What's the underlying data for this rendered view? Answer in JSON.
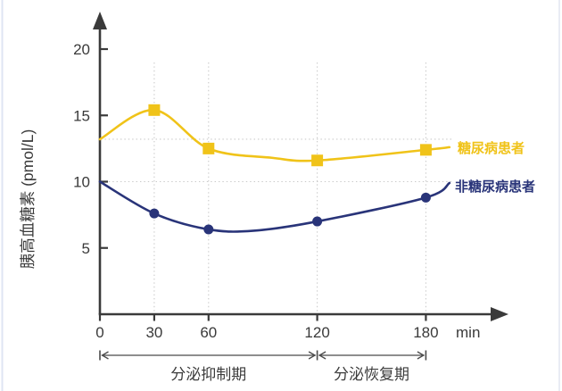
{
  "chart_data": {
    "type": "line",
    "title": "",
    "ylabel": "胰高血糖素 (pmol/L)",
    "x_unit": "min",
    "x_ticks": [
      0,
      30,
      60,
      120,
      180
    ],
    "y_ticks": [
      5,
      10,
      15,
      20
    ],
    "xlim": [
      0,
      205
    ],
    "ylim": [
      0,
      22
    ],
    "grid": "dotted",
    "grid_x": [
      30,
      60,
      120,
      180
    ],
    "ref_lines_y": [
      13.2,
      10
    ],
    "categories_min": [
      0,
      30,
      60,
      120,
      180
    ],
    "series": [
      {
        "name": "糖尿病患者",
        "color": "#F0C319",
        "marker": "square",
        "values": [
          13.2,
          15.4,
          12.5,
          11.6,
          12.4
        ],
        "shape_points": [
          [
            0,
            13.2
          ],
          [
            30,
            15.4
          ],
          [
            60,
            12.5
          ],
          [
            95,
            11.8
          ],
          [
            120,
            11.6
          ],
          [
            180,
            12.4
          ],
          [
            193,
            12.6
          ]
        ],
        "markers_at": [
          30,
          60,
          120,
          180
        ]
      },
      {
        "name": "非糖尿病患者",
        "color": "#293479",
        "marker": "circle",
        "values": [
          10.0,
          7.6,
          6.4,
          7.0,
          8.8
        ],
        "shape_points": [
          [
            0,
            10
          ],
          [
            30,
            7.6
          ],
          [
            60,
            6.4
          ],
          [
            85,
            6.3
          ],
          [
            120,
            7.0
          ],
          [
            180,
            8.8
          ],
          [
            193,
            9.9
          ]
        ],
        "markers_at": [
          30,
          60,
          120,
          180
        ]
      }
    ],
    "phases": [
      {
        "label": "分泌抑制期",
        "from": 0,
        "to": 120
      },
      {
        "label": "分泌恢复期",
        "from": 120,
        "to": 180
      }
    ],
    "legend_position": "right-of-line-end"
  },
  "colors": {
    "axis": "#3A3A3A",
    "grid": "#C9C9C9",
    "text": "#3A3A3A",
    "annotation": "#4A4A4A",
    "diabetic": "#F0C319",
    "nondiabetic": "#293479",
    "edge": "#DDE3F2"
  }
}
